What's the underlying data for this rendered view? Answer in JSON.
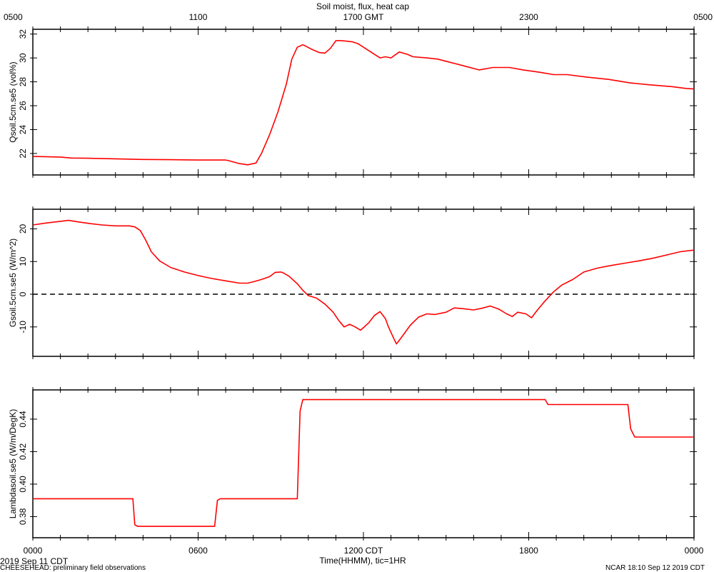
{
  "title": "Soil moist, flux, heat cap",
  "top_axis": {
    "tick_labels": [
      "0500",
      "1100",
      "1700 GMT",
      "2300",
      "0500"
    ]
  },
  "bottom_axis": {
    "tick_labels": [
      "0000",
      "0600",
      "1200 CDT",
      "1800",
      "0000"
    ],
    "label": "Time(HHMM), tic=1HR"
  },
  "footer": {
    "date_label": "2019 Sep 11 CDT",
    "project_label": "CHEESEHEAD: preliminary field observations",
    "stamp_label": "NCAR 18:10 Sep 12 2019 CDT"
  },
  "colors": {
    "series": "#ff0000",
    "axes": "#000000",
    "zero_line": "#000000"
  },
  "chart_data": [
    {
      "type": "line",
      "ylabel": "Qsoil.5cm.se5 (vol%)",
      "x_unit": "hours since 0000 CDT",
      "xlim": [
        0,
        24
      ],
      "ylim": [
        20.2,
        32.4
      ],
      "y_ticks": [
        22,
        24,
        26,
        28,
        30,
        32
      ],
      "y_tick_labels": [
        "22",
        "24",
        "26",
        "28",
        "30",
        "32"
      ],
      "series": [
        {
          "color": "#ff0000",
          "x": [
            0,
            1,
            1.4,
            2,
            3,
            4,
            5,
            6,
            7,
            7.1,
            7.5,
            7.8,
            8.1,
            8.3,
            8.6,
            8.9,
            9.2,
            9.4,
            9.6,
            9.8,
            9.9,
            10.1,
            10.4,
            10.6,
            10.8,
            11,
            11.2,
            11.4,
            11.6,
            11.8,
            12.2,
            12.6,
            12.8,
            13,
            13.3,
            13.6,
            13.8,
            14.3,
            14.7,
            15.2,
            15.7,
            16.2,
            16.7,
            17.3,
            17.8,
            18.4,
            18.9,
            19.4,
            20.1,
            20.9,
            21.7,
            22.4,
            23.2,
            23.7,
            24
          ],
          "y": [
            21.75,
            21.7,
            21.62,
            21.6,
            21.55,
            21.5,
            21.48,
            21.45,
            21.45,
            21.4,
            21.15,
            21.05,
            21.2,
            22.0,
            23.6,
            25.5,
            27.8,
            29.9,
            30.9,
            31.1,
            31.0,
            30.75,
            30.45,
            30.4,
            30.8,
            31.45,
            31.45,
            31.4,
            31.35,
            31.2,
            30.6,
            30.0,
            30.1,
            30.0,
            30.5,
            30.3,
            30.1,
            30.0,
            29.9,
            29.6,
            29.3,
            29.0,
            29.2,
            29.2,
            29.0,
            28.8,
            28.6,
            28.6,
            28.4,
            28.2,
            27.9,
            27.75,
            27.6,
            27.45,
            27.4
          ]
        }
      ]
    },
    {
      "type": "line",
      "ylabel": "Gsoil.5cm.se5 (W/m^2)",
      "x_unit": "hours since 0000 CDT",
      "xlim": [
        0,
        24
      ],
      "ylim": [
        -19,
        26
      ],
      "y_ticks": [
        -10,
        0,
        10,
        20
      ],
      "y_tick_labels": [
        "-10",
        "0",
        "10",
        "20"
      ],
      "reference_line": {
        "y": 0,
        "style": "dashed"
      },
      "series": [
        {
          "color": "#ff0000",
          "x": [
            0,
            0.5,
            1,
            1.3,
            1.6,
            2,
            2.5,
            3,
            3.5,
            3.7,
            3.9,
            4.1,
            4.3,
            4.6,
            5,
            5.5,
            6,
            6.5,
            7,
            7.5,
            7.8,
            8,
            8.3,
            8.6,
            8.8,
            9,
            9.1,
            9.3,
            9.6,
            9.8,
            10,
            10.3,
            10.6,
            10.9,
            11.1,
            11.3,
            11.5,
            11.7,
            11.9,
            12.2,
            12.4,
            12.6,
            12.8,
            12.9,
            13.1,
            13.2,
            13.4,
            13.7,
            14,
            14.3,
            14.6,
            15,
            15.3,
            15.6,
            16,
            16.3,
            16.6,
            16.9,
            17.2,
            17.4,
            17.6,
            17.9,
            18.1,
            18.3,
            18.6,
            18.9,
            19.2,
            19.6,
            20,
            20.5,
            21,
            21.5,
            22,
            22.5,
            23,
            23.5,
            24
          ],
          "y": [
            21.2,
            21.8,
            22.3,
            22.6,
            22.2,
            21.7,
            21.2,
            20.9,
            20.9,
            20.6,
            19.5,
            16.5,
            13,
            10.2,
            8.2,
            6.8,
            5.7,
            4.8,
            4.1,
            3.4,
            3.4,
            3.8,
            4.5,
            5.4,
            6.7,
            6.8,
            6.5,
            5.5,
            3.2,
            1.2,
            -0.4,
            -1.2,
            -3,
            -5.5,
            -8,
            -10,
            -9.2,
            -10,
            -11,
            -8.7,
            -6.5,
            -5.3,
            -7.5,
            -9.8,
            -13.5,
            -15.2,
            -13,
            -9.5,
            -7,
            -6,
            -6.2,
            -5.5,
            -4.2,
            -4.4,
            -4.8,
            -4.3,
            -3.6,
            -4.5,
            -6,
            -6.8,
            -5.5,
            -6,
            -7.2,
            -5,
            -2,
            0.7,
            2.8,
            4.5,
            6.8,
            8,
            8.8,
            9.5,
            10.2,
            11,
            12,
            13,
            13.5
          ]
        }
      ]
    },
    {
      "type": "line",
      "ylabel": "Lambdasoil.se5 (W/m/DegK)",
      "x_unit": "hours since 0000 CDT",
      "xlim": [
        0,
        24
      ],
      "ylim": [
        0.367,
        0.458
      ],
      "y_ticks": [
        0.38,
        0.4,
        0.42,
        0.44
      ],
      "y_tick_labels": [
        "0.38",
        "0.40",
        "0.42",
        "0.44"
      ],
      "series": [
        {
          "color": "#ff0000",
          "x": [
            0,
            3.63,
            3.7,
            3.8,
            6.6,
            6.7,
            6.8,
            9.6,
            9.7,
            9.8,
            18.6,
            18.7,
            18.8,
            21.6,
            21.7,
            21.85,
            24
          ],
          "y": [
            0.391,
            0.391,
            0.375,
            0.374,
            0.374,
            0.39,
            0.391,
            0.391,
            0.445,
            0.452,
            0.452,
            0.449,
            0.449,
            0.449,
            0.434,
            0.429,
            0.429
          ]
        }
      ]
    }
  ]
}
